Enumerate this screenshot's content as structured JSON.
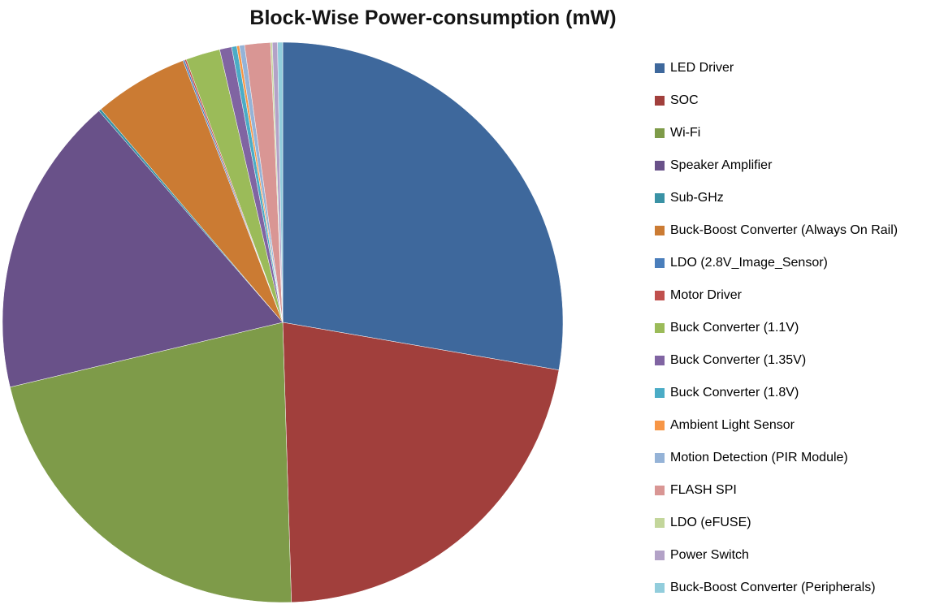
{
  "chart_data": {
    "type": "pie",
    "title": "Block-Wise Power-consumption (mW)",
    "unit": "mW",
    "legend_position": "right",
    "start_angle_deg": 0,
    "direction": "clockwise",
    "labels": [
      "LED Driver",
      "SOC",
      "Wi-Fi",
      "Speaker Amplifier",
      "Sub-GHz",
      "Buck-Boost Converter (Always On Rail)",
      "LDO (2.8V_Image_Sensor)",
      "Motor Driver",
      "Buck Converter (1.1V)",
      "Buck Converter (1.35V)",
      "Buck Converter (1.8V)",
      "Ambient Light Sensor",
      "Motion Detection (PIR Module)",
      "FLASH SPI",
      "LDO (eFUSE)",
      "Power Switch",
      "Buck-Boost Converter (Peripherals)"
    ],
    "values": [
      280,
      220,
      220,
      175,
      1.5,
      55,
      1,
      1,
      20,
      7,
      3,
      1.5,
      3,
      15,
      1,
      3,
      3
    ],
    "colors": [
      "#3E689C",
      "#A13F3C",
      "#7E9B49",
      "#695189",
      "#3A92A5",
      "#CB7B33",
      "#4A7EBB",
      "#C0504D",
      "#9BBB59",
      "#8064A2",
      "#4BACC6",
      "#F79646",
      "#95B3D7",
      "#D99694",
      "#C3D69B",
      "#B3A2C7",
      "#92CDDC"
    ]
  }
}
